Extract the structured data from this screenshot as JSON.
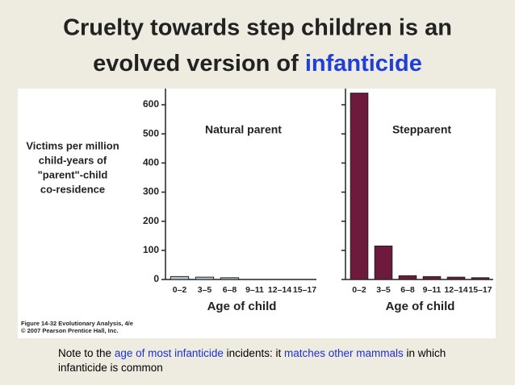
{
  "slide": {
    "title_line1": "Cruelty towards step children is an",
    "title_line2": "evolved version of",
    "title_highlight": "infanticide",
    "note": [
      {
        "text": "Note to the",
        "color": "#000000"
      },
      {
        "text": "age of most infanticide",
        "color": "#1f2fd0"
      },
      {
        "text": "incidents: it",
        "color": "#000000"
      },
      {
        "text": "matches other mammals",
        "color": "#1f2fd0"
      },
      {
        "text": "in which infanticide is common",
        "color": "#000000"
      }
    ]
  },
  "figure": {
    "y_label": [
      "Victims per million",
      "child-years of",
      "\"parent\"-child",
      "co-residence"
    ],
    "caption": "Figure 14-32  Evolutionary Analysis, 4/e",
    "copyright": "© 2007 Pearson Prentice Hall, Inc."
  },
  "chart_data": [
    {
      "type": "bar",
      "title": "Natural parent",
      "x_label": "Age of child",
      "categories": [
        "0–2",
        "3–5",
        "6–8",
        "9–11",
        "12–14",
        "15–17"
      ],
      "values": [
        10,
        8,
        6,
        0,
        0,
        0
      ],
      "color": "#b9c6d6",
      "ylim": [
        0,
        650
      ],
      "yticks": [
        0,
        100,
        200,
        300,
        400,
        500,
        600
      ]
    },
    {
      "type": "bar",
      "title": "Stepparent",
      "x_label": "Age of child",
      "categories": [
        "0–2",
        "3–5",
        "6–8",
        "9–11",
        "12–14",
        "15–17"
      ],
      "values": [
        640,
        115,
        13,
        10,
        8,
        6
      ],
      "color": "#6e1a3c",
      "ylim": [
        0,
        650
      ],
      "yticks": [
        0,
        100,
        200,
        300,
        400,
        500,
        600
      ]
    }
  ]
}
